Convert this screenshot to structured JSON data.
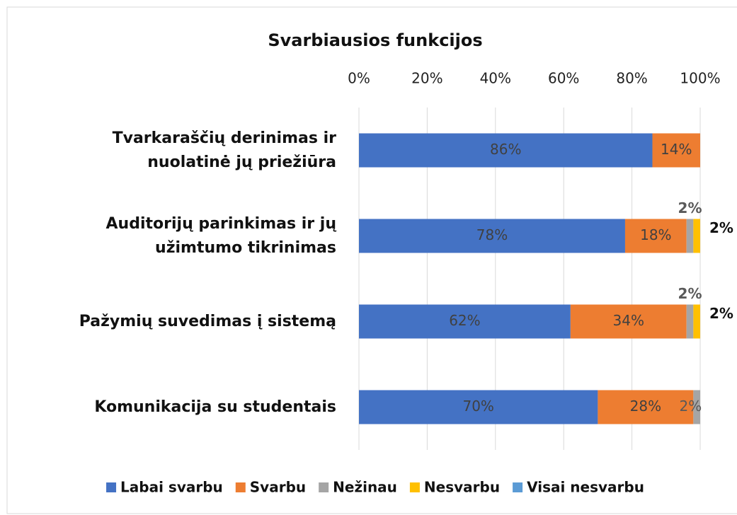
{
  "chart_data": {
    "type": "stacked-bar-horizontal",
    "title": "Svarbiausios funkcijos",
    "categories": [
      "Tvarkaraščių derinimas ir nuolatinė jų priežiūra",
      "Auditorijų parinkimas ir jų užimtumo tikrinimas",
      "Pažymių suvedimas į sistemą",
      "Komunikacija su studentais"
    ],
    "series": [
      {
        "name": "Labai svarbu",
        "color": "#4472c4",
        "values": [
          86,
          78,
          62,
          70
        ],
        "value_labels": [
          "86%",
          "78%",
          "62%",
          "70%"
        ]
      },
      {
        "name": "Svarbu",
        "color": "#ed7d31",
        "values": [
          14,
          18,
          34,
          28
        ],
        "value_labels": [
          "14%",
          "18%",
          "34%",
          "28%"
        ]
      },
      {
        "name": "Nežinau",
        "color": "#a5a5a5",
        "values": [
          0,
          2,
          2,
          2
        ],
        "value_labels": [
          null,
          "2%",
          "2%",
          "2%"
        ]
      },
      {
        "name": "Nesvarbu",
        "color": "#ffc000",
        "values": [
          0,
          2,
          2,
          0
        ],
        "value_labels": [
          null,
          "2%",
          "2%",
          null
        ]
      },
      {
        "name": "Visai nesvarbu",
        "color": "#5b9bd5",
        "values": [
          0,
          0,
          0,
          0
        ],
        "value_labels": [
          null,
          null,
          null,
          null
        ]
      }
    ],
    "xlim": [
      0,
      100
    ],
    "xticks": [
      {
        "value": 0,
        "label": "0%"
      },
      {
        "value": 20,
        "label": "20%"
      },
      {
        "value": 40,
        "label": "40%"
      },
      {
        "value": 60,
        "label": "60%"
      },
      {
        "value": 80,
        "label": "80%"
      },
      {
        "value": 100,
        "label": "100%"
      }
    ],
    "grid": true,
    "legend": "bottom"
  }
}
